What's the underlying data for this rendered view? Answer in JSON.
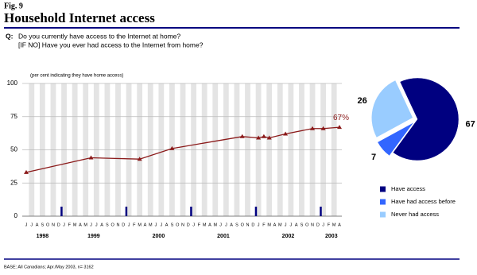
{
  "header": {
    "figure": "Fig. 9",
    "title": "Household Internet access",
    "q_label": "Q:",
    "question": [
      "Do you currently have access to the Internet at home?",
      "[IF NO] Have you ever had access to the Internet from home?"
    ]
  },
  "footer": {
    "base": "BASE: All Canadians; Apr./May 2003, n= 3162"
  },
  "chart_data": [
    {
      "type": "line",
      "subtitle": "(per cent indicating they have home access)",
      "xlim": [
        "1998-06",
        "2003-04"
      ],
      "month_labels": [
        "J",
        "J",
        "A",
        "S",
        "O",
        "N",
        "D",
        "J",
        "F",
        "M",
        "A",
        "M",
        "J",
        "J",
        "A",
        "S",
        "O",
        "N",
        "D",
        "J",
        "F",
        "M",
        "A",
        "M",
        "J",
        "J",
        "A",
        "S",
        "O",
        "N",
        "D",
        "J",
        "F",
        "M",
        "A",
        "M",
        "J",
        "J",
        "A",
        "S",
        "O",
        "N",
        "D",
        "J",
        "F",
        "M",
        "A",
        "M",
        "J",
        "J",
        "A",
        "S",
        "O",
        "N",
        "D",
        "J",
        "F",
        "M",
        "A"
      ],
      "years": [
        "1998",
        "1999",
        "2000",
        "2001",
        "2002",
        "2003"
      ],
      "x": [
        "1998-06",
        "1999-06",
        "2000-03",
        "2000-09",
        "2001-10",
        "2002-01",
        "2002-02",
        "2002-03",
        "2002-06",
        "2002-11",
        "2003-01",
        "2003-04"
      ],
      "values": [
        33,
        44,
        43,
        51,
        60,
        59,
        60,
        59,
        62,
        66,
        66,
        67
      ],
      "value_labels": [
        null,
        null,
        null,
        null,
        null,
        null,
        null,
        null,
        null,
        null,
        null,
        "67%"
      ],
      "color": "#8b1a1a",
      "ylim": [
        0,
        100
      ],
      "yticks": [
        0,
        25,
        50,
        75,
        100
      ],
      "grid": true
    },
    {
      "type": "pie",
      "categories": [
        "Have access",
        "Have had access before",
        "Never had access"
      ],
      "values": [
        67,
        7,
        26
      ],
      "colors": [
        "#000080",
        "#3366ff",
        "#99ccff"
      ]
    }
  ]
}
